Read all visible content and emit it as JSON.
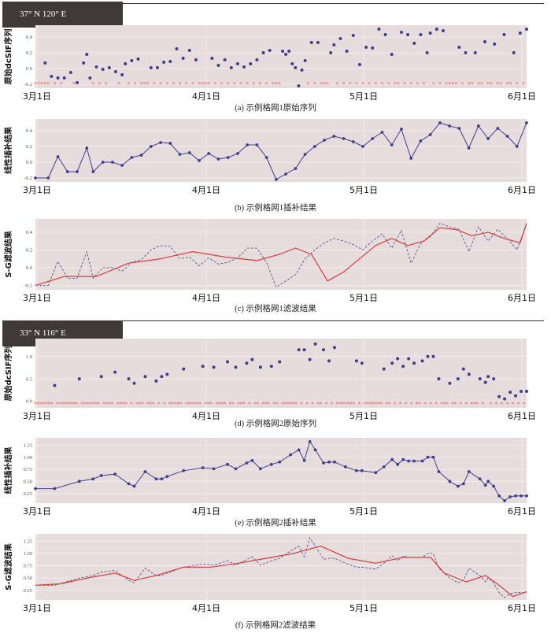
{
  "grid_labels": [
    "37°  N    120°  E",
    "33°  N    116°  E"
  ],
  "x_ticks": [
    "3月1日",
    "4月1日",
    "5月1日",
    "6月1日"
  ],
  "chart_data": [
    {
      "type": "scatter",
      "grid": 1,
      "ylabel": "原始dcSIF序列",
      "caption": "(a) 示例格网1原始序列",
      "ylim": [
        -0.25,
        0.55
      ],
      "yticks": [
        -0.2,
        0,
        0.2,
        0.4
      ],
      "yticklabels": [
        "-0.2",
        "0.0",
        "0.2",
        "0.4"
      ],
      "x": [
        4,
        6,
        8,
        10,
        12,
        14,
        16,
        17,
        18,
        20,
        22,
        24,
        26,
        28,
        29,
        31,
        33,
        37,
        39,
        41,
        43,
        45,
        47,
        49,
        51,
        56,
        58,
        60,
        62,
        64,
        66,
        68,
        70,
        72,
        74,
        78,
        79,
        80,
        81,
        82,
        83,
        84,
        85,
        87,
        89,
        93,
        94,
        96,
        98,
        100,
        102,
        104,
        106,
        108,
        110,
        112,
        115,
        117,
        119,
        121,
        123,
        124,
        126,
        128,
        133,
        135,
        138,
        141,
        144,
        147,
        150,
        152,
        154
      ],
      "values": [
        0.07,
        -0.1,
        -0.12,
        -0.12,
        -0.05,
        -0.18,
        0.07,
        0.18,
        -0.12,
        0.02,
        -0.01,
        0.01,
        -0.04,
        -0.08,
        0.06,
        0.1,
        0.12,
        0.01,
        0.01,
        0.08,
        0.09,
        0.25,
        0.13,
        0.23,
        0.11,
        0.13,
        0.04,
        0.11,
        0.01,
        0.06,
        0.02,
        0.06,
        0.11,
        0.2,
        0.23,
        0.22,
        0.18,
        0.22,
        0.06,
        0.01,
        -0.22,
        -0.02,
        0.1,
        0.33,
        0.33,
        0.2,
        0.3,
        0.38,
        0.22,
        0.42,
        0.05,
        0.27,
        0.26,
        0.5,
        0.43,
        0.18,
        0.46,
        0.43,
        0.32,
        0.43,
        0.2,
        0.45,
        0.5,
        0.48,
        0.27,
        0.2,
        0.2,
        0.34,
        0.31,
        0.43,
        0.2,
        0.45,
        0.5
      ],
      "missing": [
        1,
        2,
        3,
        4,
        5,
        7,
        9,
        13,
        19,
        21,
        23,
        27,
        30,
        32,
        34,
        35,
        36,
        38,
        40,
        42,
        44,
        46,
        48,
        50,
        52,
        53,
        54,
        55,
        57,
        59,
        61,
        63,
        65,
        67,
        69,
        71,
        73,
        75,
        76,
        77,
        86,
        88,
        90,
        91,
        92,
        95,
        97,
        99,
        101,
        103,
        105,
        107,
        109,
        111,
        113,
        114,
        116,
        118,
        120,
        122,
        125,
        127,
        129,
        130,
        131,
        132,
        134,
        136,
        137,
        139,
        140,
        142,
        143,
        145,
        146,
        148,
        149,
        151,
        153
      ]
    },
    {
      "type": "line",
      "grid": 1,
      "ylabel": "线性插补结果",
      "caption": "(b) 示例格网1插补结果",
      "ylim": [
        -0.25,
        0.55
      ],
      "yticks": [
        -0.2,
        0,
        0.2,
        0.4
      ],
      "yticklabels": [
        "-0.2",
        "0.0",
        "0.2",
        "0.4"
      ],
      "x": [
        1,
        5,
        8,
        11,
        14,
        17,
        19,
        22,
        25,
        28,
        31,
        34,
        37,
        40,
        43,
        46,
        49,
        52,
        55,
        58,
        61,
        64,
        67,
        70,
        73,
        76,
        79,
        82,
        85,
        88,
        91,
        94,
        97,
        100,
        103,
        106,
        109,
        112,
        115,
        118,
        121,
        124,
        127,
        130,
        133,
        136,
        139,
        142,
        145,
        148,
        151,
        154
      ],
      "values": [
        -0.2,
        -0.2,
        0.07,
        -0.12,
        -0.12,
        0.18,
        -0.12,
        0.0,
        0.0,
        -0.04,
        0.06,
        0.09,
        0.2,
        0.25,
        0.24,
        0.1,
        0.12,
        0.02,
        0.11,
        0.04,
        0.06,
        0.11,
        0.22,
        0.22,
        0.06,
        -0.22,
        -0.15,
        -0.08,
        0.1,
        0.2,
        0.28,
        0.33,
        0.3,
        0.26,
        0.2,
        0.3,
        0.38,
        0.22,
        0.42,
        0.05,
        0.27,
        0.35,
        0.5,
        0.46,
        0.43,
        0.18,
        0.46,
        0.3,
        0.43,
        0.33,
        0.2,
        0.5
      ]
    },
    {
      "type": "line",
      "grid": 1,
      "ylabel": "S-G滤波结果",
      "caption": "(c) 示例格网1滤波结果",
      "ylim": [
        -0.25,
        0.55
      ],
      "yticks": [
        -0.2,
        0,
        0.2,
        0.4
      ],
      "yticklabels": [
        "-0.2",
        "0.0",
        "0.2",
        "0.4"
      ],
      "x": [
        1,
        10,
        20,
        30,
        40,
        50,
        60,
        70,
        77,
        82,
        87,
        92,
        97,
        102,
        107,
        112,
        117,
        122,
        127,
        132,
        137,
        142,
        147,
        152,
        154
      ],
      "values": [
        -0.2,
        -0.1,
        -0.1,
        0.05,
        0.1,
        0.18,
        0.12,
        0.08,
        0.15,
        0.22,
        0.15,
        -0.15,
        -0.05,
        0.1,
        0.25,
        0.33,
        0.25,
        0.3,
        0.45,
        0.43,
        0.36,
        0.4,
        0.33,
        0.28,
        0.5
      ],
      "x2": [
        1,
        5,
        8,
        11,
        14,
        17,
        19,
        22,
        25,
        28,
        31,
        34,
        37,
        40,
        43,
        46,
        49,
        52,
        55,
        58,
        61,
        64,
        67,
        70,
        73,
        76,
        79,
        82,
        85,
        88,
        91,
        94,
        97,
        100,
        103,
        106,
        109,
        112,
        115,
        118,
        121,
        124,
        127,
        130,
        133,
        136,
        139,
        142,
        145,
        148,
        151,
        154
      ],
      "values2": [
        -0.2,
        -0.2,
        0.07,
        -0.12,
        -0.12,
        0.18,
        -0.12,
        0.0,
        0.0,
        -0.04,
        0.06,
        0.09,
        0.2,
        0.25,
        0.24,
        0.1,
        0.12,
        0.02,
        0.11,
        0.04,
        0.06,
        0.11,
        0.22,
        0.22,
        0.06,
        -0.22,
        -0.15,
        -0.08,
        0.1,
        0.2,
        0.28,
        0.33,
        0.3,
        0.26,
        0.2,
        0.3,
        0.38,
        0.22,
        0.42,
        0.05,
        0.27,
        0.35,
        0.5,
        0.46,
        0.43,
        0.18,
        0.46,
        0.3,
        0.43,
        0.33,
        0.2,
        0.5
      ]
    },
    {
      "type": "scatter",
      "grid": 2,
      "ylabel": "原始dcSIF序列",
      "caption": "(d) 示例格网2原始序列",
      "ylim": [
        -0.15,
        1.4
      ],
      "yticks": [
        0,
        0.5,
        1.0
      ],
      "yticklabels": [
        "0.0",
        "0.5",
        "1.0"
      ],
      "x": [
        8,
        17,
        25,
        30,
        35,
        37,
        41,
        45,
        47,
        49,
        55,
        62,
        66,
        71,
        74,
        78,
        80,
        83,
        87,
        90,
        97,
        99,
        101,
        103,
        106,
        108,
        110,
        118,
        120,
        128,
        131,
        133,
        135,
        137,
        139,
        142,
        144,
        146,
        148,
        152,
        155,
        157,
        159,
        163,
        165,
        166,
        168,
        170,
        172,
        174,
        176,
        178,
        180
      ],
      "values": [
        0.35,
        0.5,
        0.55,
        0.65,
        0.5,
        0.4,
        0.55,
        0.45,
        0.55,
        0.6,
        0.72,
        0.78,
        0.76,
        0.88,
        0.76,
        0.85,
        0.93,
        0.76,
        0.78,
        0.88,
        1.15,
        1.15,
        0.93,
        1.28,
        1.15,
        0.9,
        1.2,
        0.9,
        0.85,
        0.72,
        0.85,
        0.95,
        0.78,
        0.95,
        0.85,
        0.9,
        1.0,
        1.0,
        0.5,
        0.4,
        0.5,
        0.72,
        0.6,
        0.5,
        0.42,
        0.55,
        0.5,
        0.1,
        0.05,
        0.2,
        0.12,
        0.22,
        0.22
      ],
      "missing": [
        1,
        2,
        3,
        4,
        5,
        6,
        7,
        9,
        10,
        11,
        12,
        13,
        14,
        15,
        16,
        18,
        19,
        20,
        21,
        22,
        23,
        24,
        26,
        27,
        28,
        29,
        31,
        32,
        33,
        34,
        36,
        38,
        39,
        40,
        42,
        43,
        44,
        46,
        48,
        50,
        51,
        52,
        53,
        54,
        56,
        57,
        58,
        59,
        60,
        61,
        63,
        64,
        65,
        67,
        68,
        69,
        70,
        72,
        73,
        75,
        76,
        77,
        79,
        81,
        82,
        84,
        85,
        86,
        88,
        89,
        91,
        92,
        93,
        94,
        95,
        96,
        98,
        100,
        102,
        104,
        105,
        107,
        109,
        111,
        112,
        113,
        114,
        115,
        116,
        117,
        119,
        121,
        122,
        123,
        124,
        125,
        126,
        127,
        129,
        130,
        132,
        134,
        136,
        138,
        140,
        141,
        143,
        145,
        147,
        149,
        150,
        151,
        153,
        154,
        156,
        158,
        160,
        161,
        162,
        164,
        167,
        169,
        171,
        173,
        175,
        177,
        179
      ]
    },
    {
      "type": "line",
      "grid": 2,
      "ylabel": "线性插补结果",
      "caption": "(e) 示例格网2插补结果",
      "ylim": [
        0.05,
        1.4
      ],
      "yticks": [
        0.25,
        0.5,
        0.75,
        1.0,
        1.25
      ],
      "yticklabels": [
        "0.25",
        "0.50",
        "0.75",
        "1.00",
        "1.25"
      ],
      "x": [
        1,
        8,
        17,
        22,
        25,
        30,
        35,
        37,
        41,
        45,
        47,
        49,
        55,
        62,
        66,
        71,
        74,
        78,
        80,
        83,
        87,
        90,
        94,
        97,
        99,
        101,
        103,
        106,
        108,
        110,
        114,
        118,
        120,
        125,
        128,
        131,
        133,
        135,
        137,
        139,
        142,
        144,
        146,
        148,
        152,
        155,
        157,
        159,
        163,
        165,
        166,
        168,
        170,
        172,
        174,
        176,
        178,
        180
      ],
      "values": [
        0.35,
        0.35,
        0.5,
        0.55,
        0.62,
        0.65,
        0.45,
        0.4,
        0.7,
        0.55,
        0.55,
        0.6,
        0.72,
        0.78,
        0.76,
        0.85,
        0.76,
        0.88,
        0.93,
        0.76,
        0.85,
        0.9,
        1.05,
        1.15,
        0.93,
        1.32,
        1.15,
        0.88,
        0.9,
        0.9,
        0.8,
        0.72,
        0.72,
        0.68,
        0.8,
        0.95,
        0.85,
        0.95,
        0.92,
        0.92,
        0.92,
        1.0,
        1.0,
        0.7,
        0.5,
        0.4,
        0.45,
        0.7,
        0.55,
        0.42,
        0.5,
        0.4,
        0.2,
        0.1,
        0.18,
        0.2,
        0.2,
        0.2
      ]
    },
    {
      "type": "line",
      "grid": 2,
      "ylabel": "S-G滤波结果",
      "caption": "(f) 示例格网2滤波结果",
      "ylim": [
        0.05,
        1.4
      ],
      "yticks": [
        0.25,
        0.5,
        0.75,
        1.0,
        1.25
      ],
      "yticklabels": [
        "0.25",
        "0.50",
        "0.75",
        "1.00",
        "1.25"
      ],
      "x": [
        1,
        10,
        20,
        30,
        37,
        45,
        55,
        65,
        75,
        85,
        95,
        105,
        115,
        125,
        135,
        145,
        150,
        158,
        165,
        170,
        175,
        180
      ],
      "values": [
        0.35,
        0.38,
        0.5,
        0.6,
        0.45,
        0.55,
        0.72,
        0.72,
        0.8,
        0.9,
        1.0,
        1.15,
        0.9,
        0.8,
        0.92,
        0.92,
        0.6,
        0.42,
        0.55,
        0.35,
        0.12,
        0.22
      ],
      "x2": [
        1,
        8,
        17,
        22,
        25,
        30,
        35,
        37,
        41,
        45,
        47,
        49,
        55,
        62,
        66,
        71,
        74,
        78,
        80,
        83,
        87,
        90,
        94,
        97,
        99,
        101,
        103,
        106,
        108,
        110,
        114,
        118,
        120,
        125,
        128,
        131,
        133,
        135,
        137,
        139,
        142,
        144,
        146,
        148,
        152,
        155,
        157,
        159,
        163,
        165,
        166,
        168,
        170,
        172,
        174,
        176,
        178,
        180
      ],
      "values2": [
        0.35,
        0.35,
        0.5,
        0.55,
        0.62,
        0.65,
        0.45,
        0.4,
        0.7,
        0.55,
        0.55,
        0.6,
        0.72,
        0.78,
        0.76,
        0.85,
        0.76,
        0.88,
        0.93,
        0.76,
        0.85,
        0.9,
        1.05,
        1.15,
        0.93,
        1.32,
        1.15,
        0.88,
        0.9,
        0.9,
        0.8,
        0.72,
        0.72,
        0.68,
        0.8,
        0.95,
        0.85,
        0.95,
        0.92,
        0.92,
        0.92,
        1.0,
        1.0,
        0.7,
        0.5,
        0.4,
        0.45,
        0.7,
        0.55,
        0.42,
        0.5,
        0.4,
        0.2,
        0.1,
        0.18,
        0.2,
        0.2,
        0.2
      ]
    }
  ]
}
